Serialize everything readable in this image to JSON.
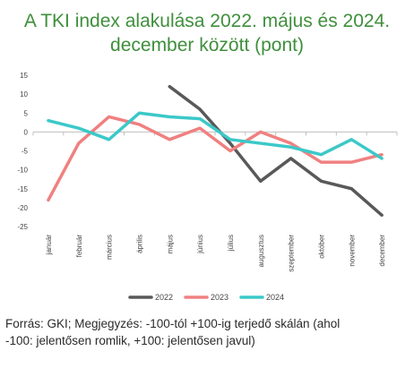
{
  "title": {
    "line1": "A TKI index alakulása 2022. május és 2024.",
    "line2": "december között (pont)"
  },
  "footer": {
    "line1": "Forrás: GKI; Megjegyzés: -100-tól +100-ig terjedő skálán (ahol",
    "line2": "-100: jelentősen romlik, +100: jelentősen javul)"
  },
  "chart_data": {
    "type": "line",
    "categories": [
      "január",
      "február",
      "március",
      "április",
      "május",
      "június",
      "július",
      "augusztus",
      "szeptember",
      "október",
      "november",
      "december"
    ],
    "ylim": [
      -25,
      15
    ],
    "yticks": [
      15,
      10,
      5,
      0,
      -5,
      -10,
      -15,
      -20,
      -25
    ],
    "grid": false,
    "legend_position": "bottom",
    "series": [
      {
        "name": "2022",
        "color": "#595959",
        "values": [
          null,
          null,
          null,
          null,
          12,
          6,
          -3,
          -13,
          -7,
          -13,
          -15,
          -22
        ]
      },
      {
        "name": "2023",
        "color": "#f08080",
        "values": [
          -18,
          -3,
          4,
          2,
          -2,
          1,
          -5,
          0,
          -3,
          -8,
          -8,
          -6
        ]
      },
      {
        "name": "2024",
        "color": "#3cc8c8",
        "values": [
          3,
          1,
          -2,
          5,
          4,
          3.5,
          -2,
          -3,
          -4,
          -6,
          -2,
          -7
        ]
      }
    ]
  }
}
